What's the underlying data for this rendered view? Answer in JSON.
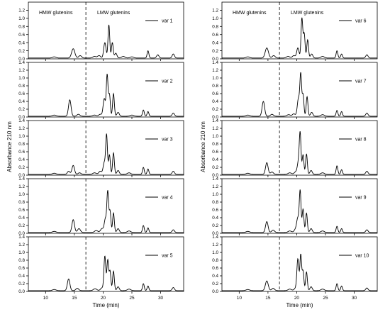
{
  "chart_data": [
    {
      "type": "line",
      "ylabel": "Absorbance 210 nm",
      "xlabel": "Time (min)",
      "xlim": [
        7,
        34
      ],
      "ylim": [
        0,
        1.4
      ],
      "xticks": [
        10,
        15,
        20,
        25,
        30
      ],
      "yticks_top": [
        "0.0",
        "0.2",
        "0.4",
        "0.6",
        "0.8",
        "1.0",
        "1.2"
      ],
      "yticks": [
        "0.0",
        "0.2",
        "0.4",
        "0.6",
        "0.8",
        "1.0",
        "1.2",
        "1.4"
      ],
      "divider_x": 17,
      "region_labels": [
        "HMW glutenins",
        "LMW glutenins"
      ],
      "baseline": 0.02,
      "panels": [
        {
          "name": "var 1",
          "peaks": [
            [
              11.5,
              0.03,
              0.3
            ],
            [
              14.8,
              0.23,
              0.28
            ],
            [
              16.0,
              0.06,
              0.25
            ],
            [
              18.5,
              0.04,
              0.3
            ],
            [
              19.3,
              0.06,
              0.25
            ],
            [
              20.3,
              0.38,
              0.2
            ],
            [
              21.0,
              0.82,
              0.15
            ],
            [
              21.6,
              0.38,
              0.15
            ],
            [
              22.2,
              0.12,
              0.2
            ],
            [
              23.5,
              0.04,
              0.3
            ],
            [
              25.0,
              0.03,
              0.3
            ],
            [
              27.8,
              0.18,
              0.15
            ],
            [
              29.5,
              0.08,
              0.2
            ],
            [
              32.2,
              0.1,
              0.2
            ]
          ]
        },
        {
          "name": "var 2",
          "peaks": [
            [
              11.5,
              0.03,
              0.3
            ],
            [
              14.2,
              0.42,
              0.22
            ],
            [
              15.7,
              0.05,
              0.25
            ],
            [
              18.5,
              0.03,
              0.3
            ],
            [
              19.5,
              0.05,
              0.25
            ],
            [
              20.2,
              0.45,
              0.2
            ],
            [
              20.7,
              1.05,
              0.15
            ],
            [
              21.1,
              0.55,
              0.15
            ],
            [
              21.8,
              0.58,
              0.15
            ],
            [
              22.6,
              0.1,
              0.2
            ],
            [
              25.0,
              0.03,
              0.3
            ],
            [
              27.0,
              0.16,
              0.15
            ],
            [
              27.8,
              0.12,
              0.15
            ],
            [
              32.2,
              0.08,
              0.2
            ]
          ]
        },
        {
          "name": "var 3",
          "peaks": [
            [
              11.5,
              0.03,
              0.3
            ],
            [
              14.0,
              0.08,
              0.22
            ],
            [
              14.8,
              0.23,
              0.22
            ],
            [
              15.9,
              0.04,
              0.25
            ],
            [
              18.5,
              0.04,
              0.3
            ],
            [
              19.5,
              0.08,
              0.25
            ],
            [
              20.2,
              0.3,
              0.2
            ],
            [
              20.6,
              1.0,
              0.15
            ],
            [
              21.1,
              0.5,
              0.15
            ],
            [
              21.8,
              0.55,
              0.15
            ],
            [
              22.6,
              0.1,
              0.2
            ],
            [
              24.5,
              0.04,
              0.3
            ],
            [
              27.0,
              0.18,
              0.15
            ],
            [
              27.8,
              0.14,
              0.15
            ],
            [
              32.2,
              0.08,
              0.2
            ]
          ]
        },
        {
          "name": "var 4",
          "peaks": [
            [
              11.5,
              0.03,
              0.3
            ],
            [
              14.8,
              0.33,
              0.22
            ],
            [
              15.8,
              0.1,
              0.25
            ],
            [
              18.8,
              0.05,
              0.3
            ],
            [
              19.8,
              0.1,
              0.25
            ],
            [
              20.4,
              0.35,
              0.2
            ],
            [
              20.8,
              1.02,
              0.15
            ],
            [
              21.2,
              0.55,
              0.15
            ],
            [
              21.8,
              0.5,
              0.15
            ],
            [
              22.6,
              0.1,
              0.2
            ],
            [
              24.5,
              0.04,
              0.3
            ],
            [
              27.0,
              0.18,
              0.15
            ],
            [
              27.8,
              0.12,
              0.15
            ],
            [
              32.2,
              0.07,
              0.2
            ]
          ]
        },
        {
          "name": "var 5",
          "peaks": [
            [
              11.5,
              0.03,
              0.3
            ],
            [
              14.0,
              0.3,
              0.22
            ],
            [
              15.5,
              0.06,
              0.25
            ],
            [
              18.6,
              0.05,
              0.3
            ],
            [
              19.8,
              0.07,
              0.25
            ],
            [
              20.3,
              0.88,
              0.16
            ],
            [
              20.8,
              0.78,
              0.15
            ],
            [
              21.2,
              0.5,
              0.15
            ],
            [
              21.8,
              0.5,
              0.15
            ],
            [
              22.6,
              0.1,
              0.2
            ],
            [
              24.5,
              0.04,
              0.3
            ],
            [
              27.0,
              0.18,
              0.15
            ],
            [
              27.8,
              0.12,
              0.15
            ],
            [
              32.2,
              0.08,
              0.2
            ]
          ]
        },
        {
          "name": "var 6",
          "peaks": [
            [
              11.5,
              0.03,
              0.3
            ],
            [
              14.8,
              0.25,
              0.28
            ],
            [
              16.0,
              0.06,
              0.25
            ],
            [
              18.5,
              0.04,
              0.3
            ],
            [
              19.5,
              0.06,
              0.25
            ],
            [
              20.2,
              0.25,
              0.2
            ],
            [
              20.9,
              0.98,
              0.15
            ],
            [
              21.3,
              0.6,
              0.15
            ],
            [
              21.9,
              0.45,
              0.15
            ],
            [
              22.6,
              0.1,
              0.2
            ],
            [
              24.5,
              0.04,
              0.3
            ],
            [
              27.0,
              0.18,
              0.15
            ],
            [
              27.8,
              0.1,
              0.15
            ],
            [
              32.2,
              0.08,
              0.2
            ]
          ]
        },
        {
          "name": "var 7",
          "peaks": [
            [
              11.5,
              0.03,
              0.3
            ],
            [
              14.2,
              0.38,
              0.22
            ],
            [
              15.7,
              0.05,
              0.25
            ],
            [
              18.6,
              0.04,
              0.3
            ],
            [
              19.5,
              0.06,
              0.25
            ],
            [
              20.3,
              0.45,
              0.2
            ],
            [
              20.7,
              1.05,
              0.15
            ],
            [
              21.1,
              0.55,
              0.15
            ],
            [
              21.8,
              0.5,
              0.15
            ],
            [
              22.6,
              0.1,
              0.2
            ],
            [
              24.5,
              0.04,
              0.3
            ],
            [
              27.0,
              0.15,
              0.15
            ],
            [
              27.8,
              0.12,
              0.15
            ],
            [
              32.2,
              0.08,
              0.2
            ]
          ]
        },
        {
          "name": "var 8",
          "peaks": [
            [
              11.5,
              0.03,
              0.3
            ],
            [
              14.8,
              0.3,
              0.22
            ],
            [
              15.7,
              0.06,
              0.25
            ],
            [
              18.8,
              0.04,
              0.3
            ],
            [
              19.8,
              0.06,
              0.25
            ],
            [
              20.3,
              0.3,
              0.2
            ],
            [
              20.6,
              1.0,
              0.15
            ],
            [
              21.1,
              0.5,
              0.15
            ],
            [
              21.7,
              0.52,
              0.15
            ],
            [
              22.5,
              0.1,
              0.2
            ],
            [
              24.5,
              0.04,
              0.3
            ],
            [
              27.0,
              0.22,
              0.15
            ],
            [
              27.8,
              0.12,
              0.15
            ],
            [
              32.2,
              0.08,
              0.2
            ]
          ]
        },
        {
          "name": "var 9",
          "peaks": [
            [
              11.5,
              0.03,
              0.3
            ],
            [
              14.8,
              0.28,
              0.22
            ],
            [
              15.9,
              0.06,
              0.25
            ],
            [
              18.8,
              0.04,
              0.3
            ],
            [
              19.8,
              0.08,
              0.25
            ],
            [
              20.2,
              0.35,
              0.2
            ],
            [
              20.6,
              1.05,
              0.15
            ],
            [
              21.1,
              0.6,
              0.15
            ],
            [
              21.7,
              0.5,
              0.15
            ],
            [
              22.5,
              0.1,
              0.2
            ],
            [
              24.5,
              0.04,
              0.3
            ],
            [
              27.0,
              0.16,
              0.15
            ],
            [
              27.8,
              0.1,
              0.15
            ],
            [
              32.2,
              0.07,
              0.2
            ]
          ]
        },
        {
          "name": "var 10",
          "peaks": [
            [
              11.5,
              0.03,
              0.3
            ],
            [
              14.8,
              0.25,
              0.25
            ],
            [
              15.9,
              0.06,
              0.25
            ],
            [
              18.8,
              0.04,
              0.3
            ],
            [
              19.8,
              0.06,
              0.25
            ],
            [
              20.2,
              0.8,
              0.17
            ],
            [
              20.7,
              0.92,
              0.15
            ],
            [
              21.1,
              0.5,
              0.15
            ],
            [
              21.7,
              0.48,
              0.15
            ],
            [
              22.5,
              0.1,
              0.2
            ],
            [
              24.5,
              0.04,
              0.3
            ],
            [
              27.0,
              0.18,
              0.15
            ],
            [
              27.8,
              0.12,
              0.15
            ],
            [
              32.2,
              0.07,
              0.2
            ]
          ]
        }
      ]
    }
  ]
}
